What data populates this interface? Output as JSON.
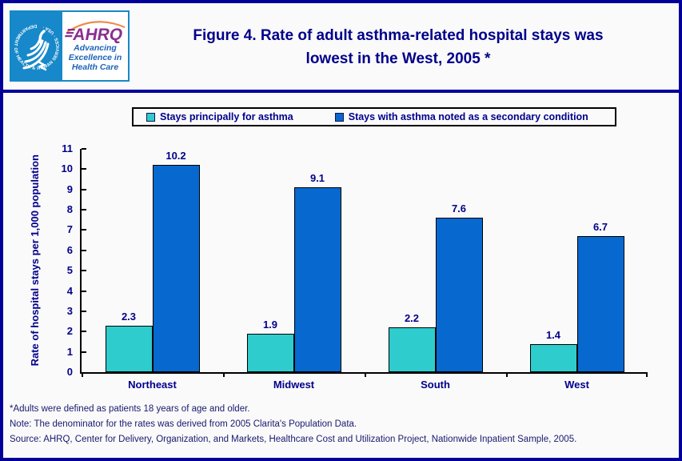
{
  "page": {
    "background": "#FAFAFA",
    "border_color": "#000099",
    "text_color": "#00008B"
  },
  "header": {
    "title_line1": "Figure 4. Rate of adult asthma-related hospital stays was",
    "title_line2": "lowest in the West, 2005 *",
    "logo": {
      "hhs_circle_text": "DEPARTMENT OF HEALTH & HUMAN SERVICES · USA ·",
      "ahrq_acronym": "AHRQ",
      "ahrq_tagline_line1": "Advancing",
      "ahrq_tagline_line2": "Excellence in",
      "ahrq_tagline_line3": "Health Care"
    }
  },
  "chart_data": {
    "type": "bar",
    "title": "Figure 4. Rate of adult asthma-related hospital stays was lowest in the West, 2005 *",
    "categories": [
      "Northeast",
      "Midwest",
      "South",
      "West"
    ],
    "series": [
      {
        "name": "Stays principally for asthma",
        "color": "#2FCCCE",
        "values": [
          2.3,
          1.9,
          2.2,
          1.4
        ]
      },
      {
        "name": "Stays with asthma noted as a secondary condition",
        "color": "#0768D0",
        "values": [
          10.2,
          9.1,
          7.6,
          6.7
        ]
      }
    ],
    "xlabel": "",
    "ylabel": "Rate of hospital stays per 1,000 population",
    "ylim": [
      0,
      11
    ],
    "ytick_step": 1,
    "grid": false,
    "legend_position": "top",
    "value_labels": true
  },
  "footnotes": [
    "*Adults were defined as patients 18 years of age and older.",
    "Note: The denominator for the rates was derived from 2005 Clarita's Population Data.",
    "Source: AHRQ, Center for Delivery, Organization, and Markets, Healthcare Cost and Utilization Project, Nationwide Inpatient Sample, 2005."
  ]
}
